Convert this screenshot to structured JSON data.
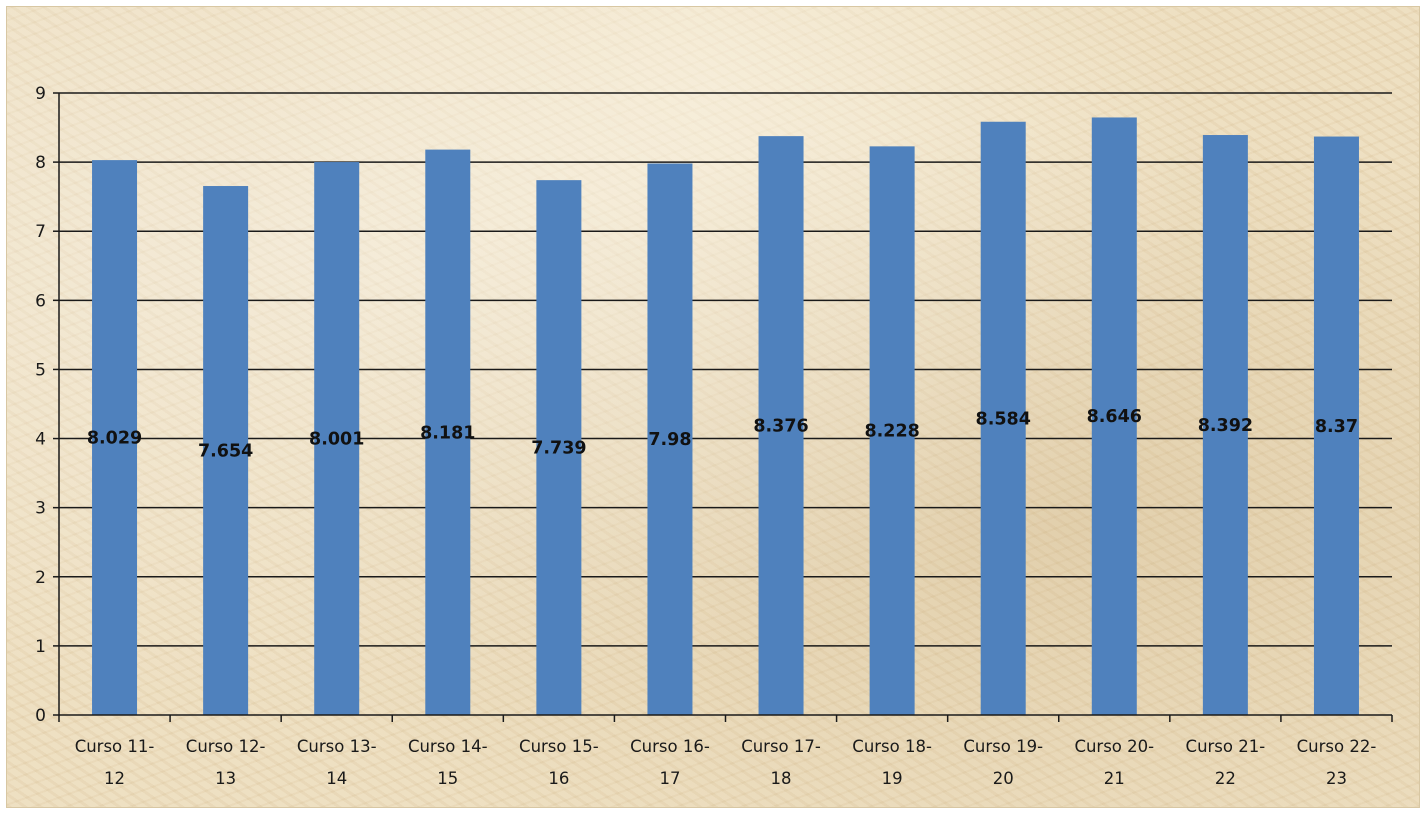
{
  "chart_data": {
    "type": "bar",
    "title": "",
    "xlabel": "",
    "ylabel": "",
    "categories": [
      [
        "Curso 11-",
        "12"
      ],
      [
        "Curso 12-",
        "13"
      ],
      [
        "Curso 13-",
        "14"
      ],
      [
        "Curso 14-",
        "15"
      ],
      [
        "Curso 15-",
        "16"
      ],
      [
        "Curso 16-",
        "17"
      ],
      [
        "Curso 17-",
        "18"
      ],
      [
        "Curso 18-",
        "19"
      ],
      [
        "Curso 19-",
        "20"
      ],
      [
        "Curso 20-",
        "21"
      ],
      [
        "Curso 21-",
        "22"
      ],
      [
        "Curso 22-",
        "23"
      ]
    ],
    "values": [
      8.029,
      7.654,
      8.001,
      8.181,
      7.739,
      7.98,
      8.376,
      8.228,
      8.584,
      8.646,
      8.392,
      8.37
    ],
    "data_labels": [
      "8.029",
      "7.654",
      "8.001",
      "8.181",
      "7.739",
      "7.98",
      "8.376",
      "8.228",
      "8.584",
      "8.646",
      "8.392",
      "8.37"
    ],
    "ylim": [
      0,
      9
    ],
    "yticks": [
      "0",
      "1",
      "2",
      "3",
      "4",
      "5",
      "6",
      "7",
      "8",
      "9"
    ],
    "grid": true,
    "legend": "none",
    "colors": {
      "bar": "#4f81bd",
      "background": "#ecdcbc"
    }
  }
}
